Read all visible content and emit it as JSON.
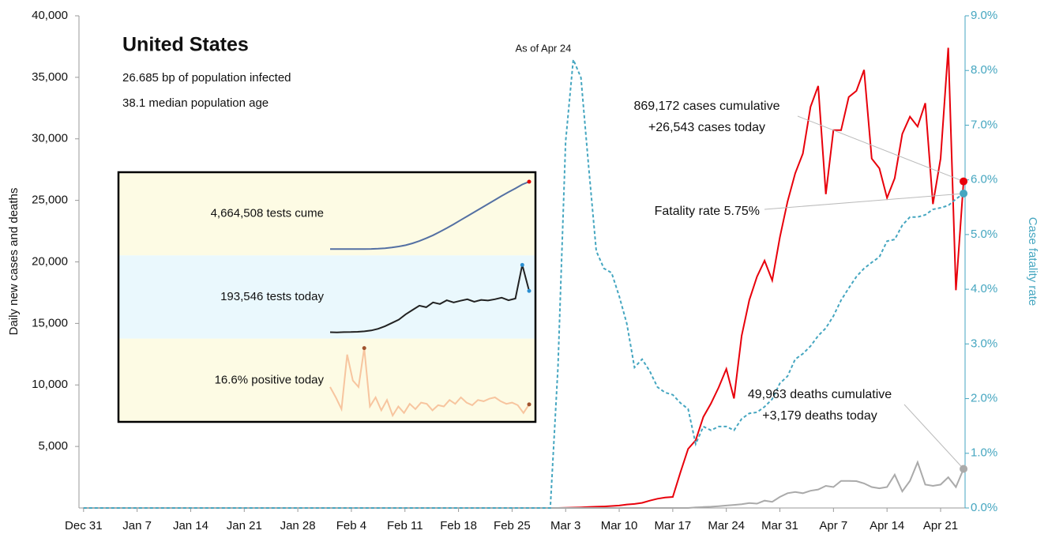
{
  "chart_data": {
    "type": "line",
    "title": "United States",
    "subtitle": [
      "26.685 bp of population infected",
      "38.1 median population age"
    ],
    "ylabel": "Daily new cases and deaths",
    "y2label": "Case fatality rate",
    "xlim": [
      -0.6,
      115.2
    ],
    "xticks": [
      {
        "value": 0,
        "label": "Dec 31"
      },
      {
        "value": 7,
        "label": "Jan 7"
      },
      {
        "value": 14,
        "label": "Jan 14"
      },
      {
        "value": 21,
        "label": "Jan 21"
      },
      {
        "value": 28,
        "label": "Jan 28"
      },
      {
        "value": 35,
        "label": "Feb 4"
      },
      {
        "value": 42,
        "label": "Feb 11"
      },
      {
        "value": 49,
        "label": "Feb 18"
      },
      {
        "value": 56,
        "label": "Feb 25"
      },
      {
        "value": 63,
        "label": "Mar 3"
      },
      {
        "value": 70,
        "label": "Mar 10"
      },
      {
        "value": 77,
        "label": "Mar 17"
      },
      {
        "value": 84,
        "label": "Mar 24"
      },
      {
        "value": 91,
        "label": "Mar 31"
      },
      {
        "value": 98,
        "label": "Apr 7"
      },
      {
        "value": 105,
        "label": "Apr 14"
      },
      {
        "value": 112,
        "label": "Apr 21"
      }
    ],
    "ylim": [
      0,
      40000
    ],
    "yticks": [
      {
        "value": 5000,
        "label": "5,000"
      },
      {
        "value": 10000,
        "label": "10,000"
      },
      {
        "value": 15000,
        "label": "15,000"
      },
      {
        "value": 20000,
        "label": "20,000"
      },
      {
        "value": 25000,
        "label": "25,000"
      },
      {
        "value": 30000,
        "label": "30,000"
      },
      {
        "value": 35000,
        "label": "35,000"
      },
      {
        "value": 40000,
        "label": "40,000"
      }
    ],
    "y2lim": [
      0,
      9
    ],
    "y2ticks": [
      {
        "value": 0,
        "label": "0.0%"
      },
      {
        "value": 1,
        "label": "1.0%"
      },
      {
        "value": 2,
        "label": "2.0%"
      },
      {
        "value": 3,
        "label": "3.0%"
      },
      {
        "value": 4,
        "label": "4.0%"
      },
      {
        "value": 5,
        "label": "5.0%"
      },
      {
        "value": 6,
        "label": "6.0%"
      },
      {
        "value": 7,
        "label": "7.0%"
      },
      {
        "value": 8,
        "label": "8.0%"
      },
      {
        "value": 9,
        "label": "9.0%"
      }
    ],
    "series": [
      {
        "color": "#e8000b",
        "dash": false,
        "x": [
          0,
          62,
          63,
          64,
          65,
          66,
          67,
          68,
          69,
          70,
          71,
          72,
          73,
          74,
          75,
          76,
          77,
          78,
          79,
          80,
          81,
          82,
          83,
          84,
          85,
          86,
          87,
          88,
          89,
          90,
          91,
          92,
          93,
          94,
          95,
          96,
          97,
          98,
          99,
          100,
          101,
          102,
          103,
          104,
          105,
          106,
          107,
          108,
          109,
          110,
          111,
          112,
          113,
          114,
          115
        ],
        "values": [
          0,
          0,
          20,
          30,
          50,
          80,
          100,
          120,
          160,
          200,
          280,
          330,
          420,
          600,
          750,
          850,
          900,
          2900,
          4800,
          5500,
          7400,
          8500,
          9800,
          11300,
          8900,
          14000,
          16900,
          18800,
          20100,
          18500,
          22000,
          24900,
          27200,
          28800,
          32600,
          34300,
          25500,
          30700,
          30700,
          33400,
          33900,
          35600,
          28400,
          27600,
          25200,
          26800,
          30400,
          31800,
          31000,
          32900,
          24700,
          28400,
          37400,
          17700,
          26543
        ]
      },
      {
        "color": "#aaaaaa",
        "dash": false,
        "x": [
          0,
          79,
          80,
          81,
          82,
          83,
          84,
          85,
          86,
          87,
          88,
          89,
          90,
          91,
          92,
          93,
          94,
          95,
          96,
          97,
          98,
          99,
          100,
          101,
          102,
          103,
          104,
          105,
          106,
          107,
          108,
          109,
          110,
          111,
          112,
          113,
          114,
          115
        ],
        "values": [
          0,
          0,
          50,
          80,
          100,
          150,
          200,
          250,
          300,
          400,
          350,
          600,
          500,
          900,
          1200,
          1300,
          1200,
          1400,
          1500,
          1800,
          1700,
          2200,
          2200,
          2180,
          2000,
          1700,
          1600,
          1700,
          2700,
          1350,
          2200,
          3720,
          1900,
          1800,
          1900,
          2500,
          1700,
          3179
        ]
      },
      {
        "color": "#45a6c0",
        "dash": true,
        "axis": "y2",
        "x": [
          0,
          61,
          62,
          63,
          64,
          65,
          66,
          67,
          68,
          69,
          70,
          71,
          72,
          73,
          74,
          75,
          76,
          77,
          78,
          79,
          80,
          81,
          82,
          83,
          84,
          85,
          86,
          87,
          88,
          89,
          90,
          91,
          92,
          93,
          94,
          95,
          96,
          97,
          98,
          99,
          100,
          101,
          102,
          103,
          104,
          105,
          106,
          107,
          108,
          109,
          110,
          111,
          112,
          113,
          114,
          115
        ],
        "values": [
          0,
          0,
          2.57,
          6.7,
          8.2,
          7.87,
          6.25,
          4.7,
          4.38,
          4.3,
          3.87,
          3.37,
          2.57,
          2.72,
          2.5,
          2.21,
          2.11,
          2.07,
          1.92,
          1.81,
          1.17,
          1.49,
          1.42,
          1.49,
          1.49,
          1.42,
          1.63,
          1.73,
          1.75,
          1.85,
          1.99,
          2.28,
          2.41,
          2.72,
          2.82,
          2.96,
          3.15,
          3.29,
          3.51,
          3.8,
          4.02,
          4.23,
          4.38,
          4.49,
          4.59,
          4.88,
          4.91,
          5.17,
          5.32,
          5.32,
          5.36,
          5.46,
          5.49,
          5.53,
          5.65,
          5.75
        ]
      }
    ],
    "annotations": {
      "as_of": "As of Apr 24",
      "cases": [
        "869,172 cases cumulative",
        "+26,543 cases today"
      ],
      "fatality": "Fatality rate 5.75%",
      "deaths": [
        "49,963 deaths cumulative",
        "+3,179 deaths today"
      ]
    },
    "inset": [
      {
        "label": "4,664,508 tests cume",
        "color": "#5470a3",
        "marker_color": "#e00000",
        "background": "#fdfbe4",
        "values": [
          0,
          500,
          1000,
          2000,
          4000,
          8000,
          15000,
          30000,
          60000,
          110000,
          180000,
          270000,
          400000,
          560000,
          750000,
          960000,
          1200000,
          1450000,
          1720000,
          2000000,
          2280000,
          2560000,
          2840000,
          3120000,
          3400000,
          3680000,
          3950000,
          4200000,
          4470962,
          4664508
        ]
      },
      {
        "label": "193,546 tests today",
        "color": "#222222",
        "marker_color": "#2b8fd1",
        "background": "#eaf8fd",
        "values": [
          2000,
          1500,
          2500,
          3000,
          4000,
          6000,
          10000,
          18000,
          30000,
          45000,
          60000,
          85000,
          105000,
          125000,
          118000,
          140000,
          133000,
          150000,
          140000,
          148000,
          155000,
          143000,
          152000,
          149000,
          155000,
          162000,
          150000,
          158000,
          314000,
          193546
        ]
      },
      {
        "label": "16.6% positive today",
        "color": "#f7c59f",
        "marker_color": "#a0522d",
        "background": "#fdfbe4",
        "values": [
          30,
          22,
          13,
          55,
          35,
          30,
          60,
          15,
          22,
          12,
          20,
          8,
          15,
          10,
          17,
          13,
          18,
          17,
          12,
          16,
          15,
          20,
          17,
          22,
          18,
          16,
          20,
          19,
          21,
          22,
          19,
          17,
          18,
          16,
          10,
          16.6
        ]
      }
    ]
  }
}
